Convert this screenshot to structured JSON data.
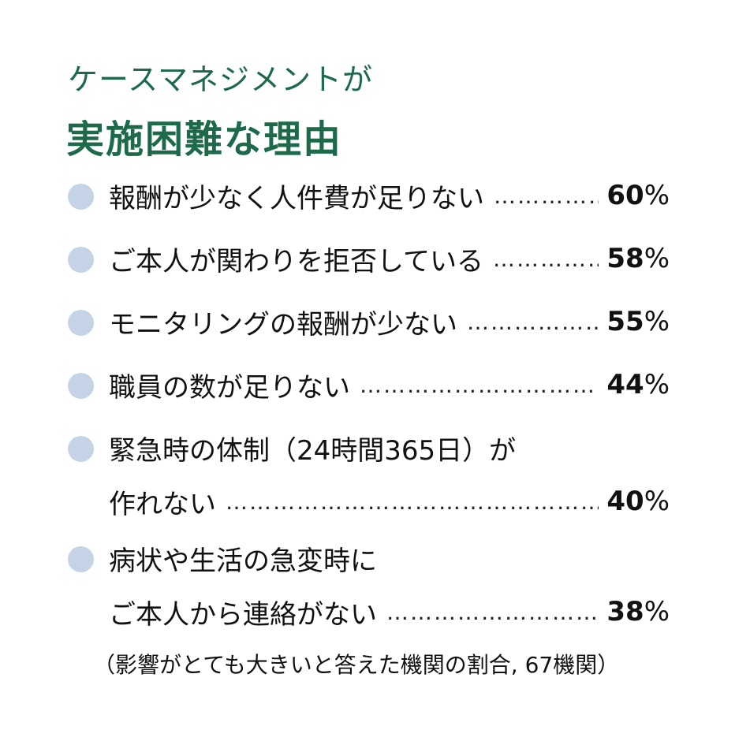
{
  "header": {
    "subtitle": "ケースマネジメントが",
    "title": "実施困難な理由"
  },
  "chart_data": {
    "type": "bar",
    "title": "実施困難な理由",
    "subtitle": "ケースマネジメントが",
    "unit": "%",
    "categories": [
      "報酬が少なく人件費が足りない",
      "ご本人が関わりを拒否している",
      "モニタリングの報酬が少ない",
      "職員の数が足りない",
      "緊急時の体制（24時間365日）が作れない",
      "病状や生活の急変時にご本人から連絡がない"
    ],
    "values": [
      60,
      58,
      55,
      44,
      40,
      38
    ],
    "items": [
      {
        "lines": [
          "報酬が少なく人件費が足りない"
        ],
        "value": "60",
        "pct": "%"
      },
      {
        "lines": [
          "ご本人が関わりを拒否している"
        ],
        "value": "58",
        "pct": "%"
      },
      {
        "lines": [
          "モニタリングの報酬が少ない"
        ],
        "value": "55",
        "pct": "%"
      },
      {
        "lines": [
          "職員の数が足りない"
        ],
        "value": "44",
        "pct": "%"
      },
      {
        "lines": [
          "緊急時の体制（24時間365日）が",
          "作れない"
        ],
        "value": "40",
        "pct": "%"
      },
      {
        "lines": [
          " 病状や生活の急変時に",
          "ご本人から連絡がない"
        ],
        "value": "38",
        "pct": "%"
      }
    ],
    "footnote": "（影響がとても大きいと答えた機関の割合, 67機関）"
  },
  "colors": {
    "heading": "#1c6a4a",
    "bullet": "#c4d3e5",
    "text": "#111111"
  }
}
